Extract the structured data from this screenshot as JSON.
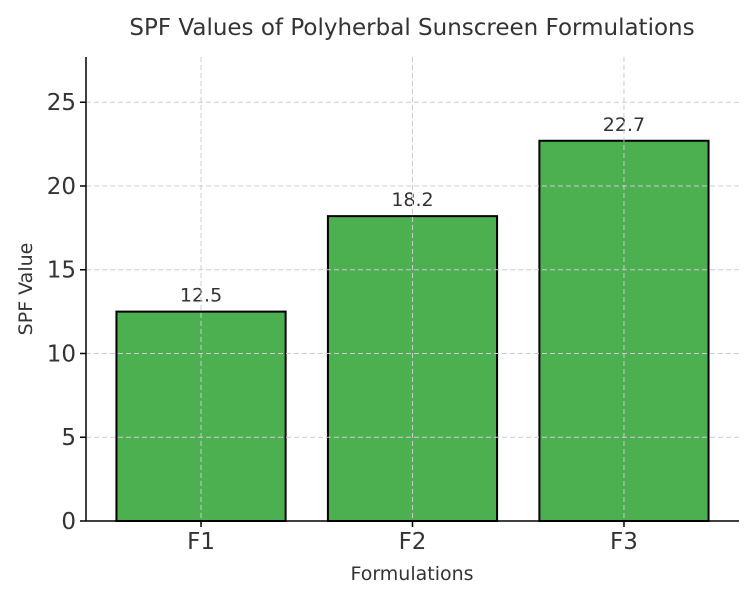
{
  "chart_data": {
    "type": "bar",
    "title": "SPF Values of Polyherbal Sunscreen Formulations",
    "xlabel": "Formulations",
    "ylabel": "SPF Value",
    "categories": [
      "F1",
      "F2",
      "F3"
    ],
    "values": [
      12.5,
      18.2,
      22.7
    ],
    "data_labels": [
      "12.5",
      "18.2",
      "22.7"
    ],
    "ylim": [
      0,
      27.7
    ],
    "yticks": [
      0,
      5,
      10,
      15,
      20,
      25
    ],
    "ytick_labels": [
      "0",
      "5",
      "10",
      "15",
      "20",
      "25"
    ],
    "grid": true,
    "bar_color": "#4CAF50",
    "edge_color": "#000000"
  }
}
